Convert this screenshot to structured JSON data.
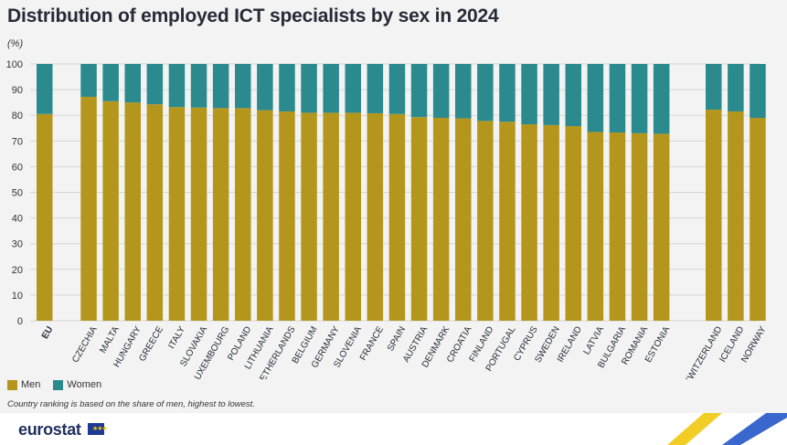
{
  "header": {
    "title": "Distribution of employed ICT specialists by sex in 2024",
    "unit": "(%)"
  },
  "legend": {
    "items": [
      {
        "label": "Men",
        "color": "#b5961c"
      },
      {
        "label": "Women",
        "color": "#2a8a8e"
      }
    ]
  },
  "note": "Country ranking is based on the share of men, highest to lowest.",
  "footer": {
    "logo_text": "eurostat"
  },
  "chart_data": {
    "type": "bar",
    "stacked": true,
    "ylim": [
      0,
      100
    ],
    "yticks": [
      0,
      10,
      20,
      30,
      40,
      50,
      60,
      70,
      80,
      90,
      100
    ],
    "grid": true,
    "legend_position": "bottom-left",
    "categories": [
      "EU",
      "CZECHIA",
      "MALTA",
      "HUNGARY",
      "GREECE",
      "ITALY",
      "SLOVAKIA",
      "LUXEMBOURG",
      "POLAND",
      "LITHUANIA",
      "NETHERLANDS",
      "BELGIUM",
      "GERMANY",
      "SLOVENIA",
      "FRANCE",
      "SPAIN",
      "AUSTRIA",
      "DENMARK",
      "CROATIA",
      "FINLAND",
      "PORTUGAL",
      "CYPRUS",
      "SWEDEN",
      "IRELAND",
      "LATVIA",
      "BULGARIA",
      "ROMANIA",
      "ESTONIA",
      "SWITZERLAND",
      "ICELAND",
      "NORWAY"
    ],
    "bold_categories": [
      "EU"
    ],
    "series": [
      {
        "name": "Men",
        "color": "#b5961c",
        "values": [
          80.5,
          87.2,
          85.5,
          85.0,
          84.3,
          83.2,
          83.0,
          82.8,
          82.8,
          82.0,
          81.5,
          81.0,
          81.0,
          81.0,
          80.8,
          80.5,
          79.3,
          79.0,
          78.8,
          77.8,
          77.5,
          76.5,
          76.2,
          75.8,
          73.5,
          73.3,
          73.0,
          72.8,
          82.2,
          81.5,
          79.0
        ]
      },
      {
        "name": "Women",
        "color": "#2a8a8e",
        "values": [
          19.5,
          12.8,
          14.5,
          15.0,
          15.7,
          16.8,
          17.0,
          17.2,
          17.2,
          18.0,
          18.5,
          19.0,
          19.0,
          19.0,
          19.2,
          19.5,
          20.7,
          21.0,
          21.2,
          22.2,
          22.5,
          23.5,
          23.8,
          24.2,
          26.5,
          26.7,
          27.0,
          27.2,
          17.8,
          18.5,
          21.0
        ]
      }
    ]
  }
}
